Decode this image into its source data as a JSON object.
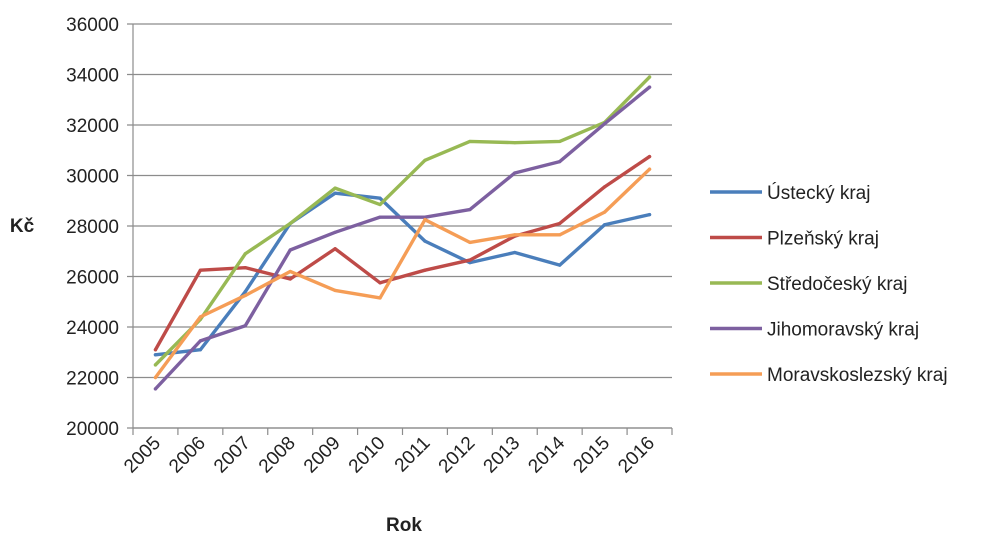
{
  "chart_data": {
    "type": "line",
    "title": "",
    "xlabel": "Rok",
    "ylabel": "Kč",
    "categories": [
      "2005",
      "2006",
      "2007",
      "2008",
      "2009",
      "2010",
      "2011",
      "2012",
      "2013",
      "2014",
      "2015",
      "2016"
    ],
    "ylim": [
      20000,
      36000
    ],
    "yticks": [
      "20000",
      "22000",
      "24000",
      "26000",
      "28000",
      "30000",
      "32000",
      "34000",
      "36000"
    ],
    "grid": true,
    "legend_position": "right",
    "series": [
      {
        "name": "Ústecký kraj",
        "color": "#4a7ebb",
        "values": [
          22900,
          23100,
          25400,
          28100,
          29300,
          29100,
          27400,
          26550,
          26950,
          26450,
          28050,
          28450
        ]
      },
      {
        "name": "Plzeňský kraj",
        "color": "#be4b48",
        "values": [
          23100,
          26250,
          26350,
          25900,
          27100,
          25750,
          26250,
          26650,
          27600,
          28100,
          29550,
          30750
        ]
      },
      {
        "name": "Středočeský kraj",
        "color": "#98b954",
        "values": [
          22500,
          24300,
          26900,
          28100,
          29500,
          28850,
          30600,
          31350,
          31300,
          31350,
          32100,
          33900
        ]
      },
      {
        "name": "Jihomoravský kraj",
        "color": "#7d60a0",
        "values": [
          21550,
          23450,
          24050,
          27050,
          27750,
          28350,
          28350,
          28650,
          30100,
          30550,
          32050,
          33500
        ]
      },
      {
        "name": "Moravskoslezský kraj",
        "color": "#f59d56",
        "values": [
          22000,
          24400,
          25250,
          26200,
          25450,
          25150,
          28250,
          27350,
          27650,
          27650,
          28550,
          30250
        ]
      }
    ]
  }
}
